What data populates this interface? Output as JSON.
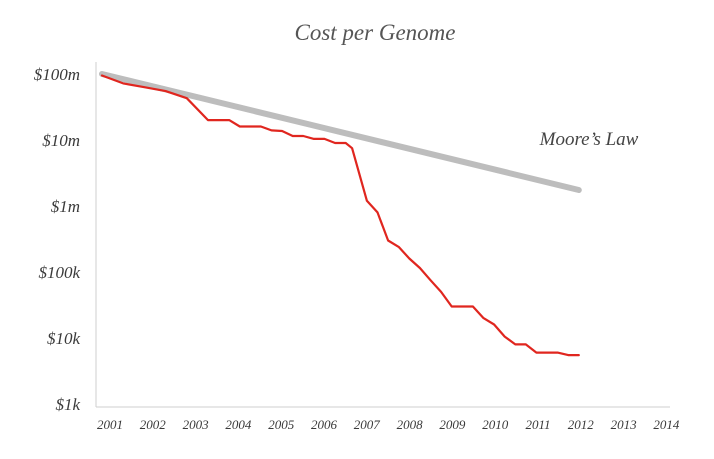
{
  "chart_data": {
    "type": "line",
    "title": "Cost per Genome",
    "xlabel": "",
    "ylabel": "",
    "y_scale": "log",
    "ylim": [
      1000,
      100000000
    ],
    "xlim": [
      2001,
      2014
    ],
    "y_ticks": [
      {
        "value": 100000000,
        "label": "$100m"
      },
      {
        "value": 10000000,
        "label": "$10m"
      },
      {
        "value": 1000000,
        "label": "$1m"
      },
      {
        "value": 100000,
        "label": "$100k"
      },
      {
        "value": 10000,
        "label": "$10k"
      },
      {
        "value": 1000,
        "label": "$1k"
      }
    ],
    "x_ticks": [
      "2001",
      "2002",
      "2003",
      "2004",
      "2005",
      "2006",
      "2007",
      "2008",
      "2009",
      "2010",
      "2011",
      "2012",
      "2013",
      "2014"
    ],
    "grid": false,
    "series": [
      {
        "color": "#e0261f",
        "points": [
          [
            2001.0,
            95000000
          ],
          [
            2001.5,
            72000000
          ],
          [
            2002.0,
            63000000
          ],
          [
            2002.5,
            55000000
          ],
          [
            2003.0,
            43000000
          ],
          [
            2003.5,
            20000000
          ],
          [
            2004.0,
            20000000
          ],
          [
            2004.25,
            16000000
          ],
          [
            2004.75,
            16000000
          ],
          [
            2005.0,
            14000000
          ],
          [
            2005.25,
            13700000
          ],
          [
            2005.5,
            11500000
          ],
          [
            2005.75,
            11500000
          ],
          [
            2006.0,
            10400000
          ],
          [
            2006.25,
            10400000
          ],
          [
            2006.5,
            9000000
          ],
          [
            2006.75,
            9000000
          ],
          [
            2006.9,
            7500000
          ],
          [
            2007.25,
            1200000
          ],
          [
            2007.5,
            800000
          ],
          [
            2007.75,
            300000
          ],
          [
            2008.0,
            240000
          ],
          [
            2008.25,
            160000
          ],
          [
            2008.5,
            115000
          ],
          [
            2008.75,
            75000
          ],
          [
            2009.0,
            50000
          ],
          [
            2009.25,
            30000
          ],
          [
            2009.5,
            30000
          ],
          [
            2009.75,
            30000
          ],
          [
            2010.0,
            20000
          ],
          [
            2010.25,
            16000
          ],
          [
            2010.5,
            10500
          ],
          [
            2010.75,
            8000
          ],
          [
            2011.0,
            8000
          ],
          [
            2011.25,
            6000
          ],
          [
            2011.5,
            6000
          ],
          [
            2011.75,
            6000
          ],
          [
            2012.0,
            5500
          ],
          [
            2012.25,
            5500
          ]
        ]
      },
      {
        "name": "Moore's Law",
        "color": "#bdbdbd",
        "points": [
          [
            2001.0,
            100000000
          ],
          [
            2012.25,
            1750000
          ]
        ]
      }
    ],
    "annotations": [
      {
        "text": "Moore’s Law",
        "x": 2010.5,
        "y": 10000000
      }
    ]
  }
}
